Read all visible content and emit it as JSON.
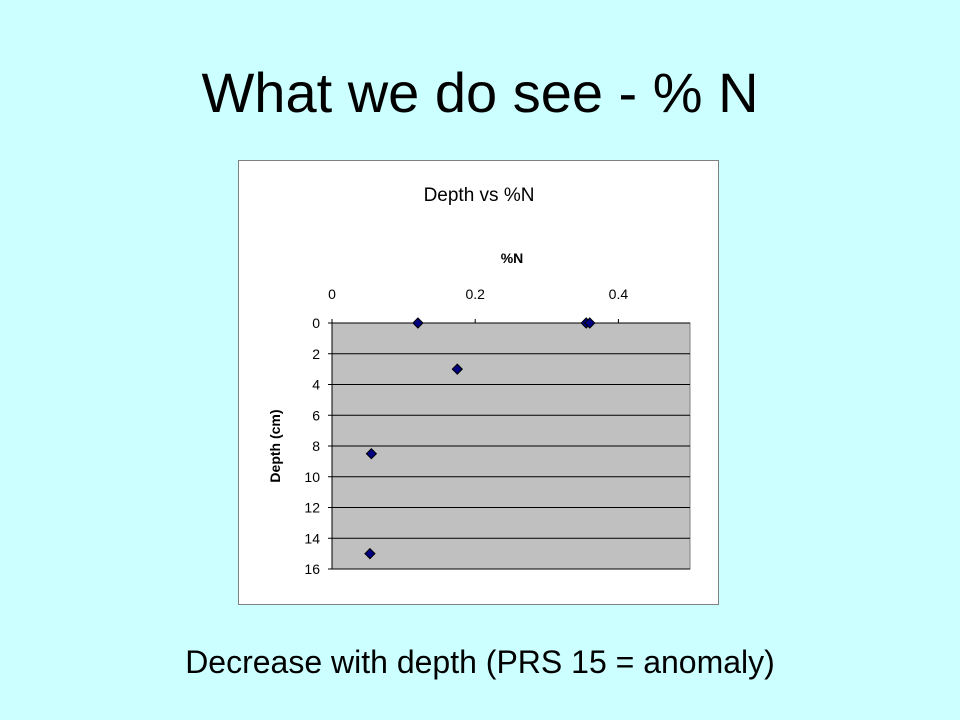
{
  "slide": {
    "title": "What we do see - % N",
    "caption": "Decrease with depth (PRS 15 = anomaly)"
  },
  "chart_data": {
    "type": "scatter",
    "title": "Depth vs %N",
    "xlabel": "%N",
    "ylabel": "Depth (cm)",
    "x_axis_position": "top",
    "y_axis_reversed": true,
    "xlim": [
      0,
      0.5
    ],
    "ylim": [
      0,
      16
    ],
    "x_ticks": [
      "0",
      "0.2",
      "0.4"
    ],
    "y_ticks": [
      "0",
      "2",
      "4",
      "6",
      "8",
      "10",
      "12",
      "14",
      "16"
    ],
    "gridlines": "horizontal",
    "legend": "none",
    "plot_background": "#c0c0c0",
    "marker_color": "#000080",
    "marker": "diamond",
    "points": [
      {
        "x": 0.12,
        "y": 0
      },
      {
        "x": 0.355,
        "y": 0
      },
      {
        "x": 0.36,
        "y": 0
      },
      {
        "x": 0.175,
        "y": 3
      },
      {
        "x": 0.055,
        "y": 8.5
      },
      {
        "x": 0.053,
        "y": 15
      }
    ]
  }
}
